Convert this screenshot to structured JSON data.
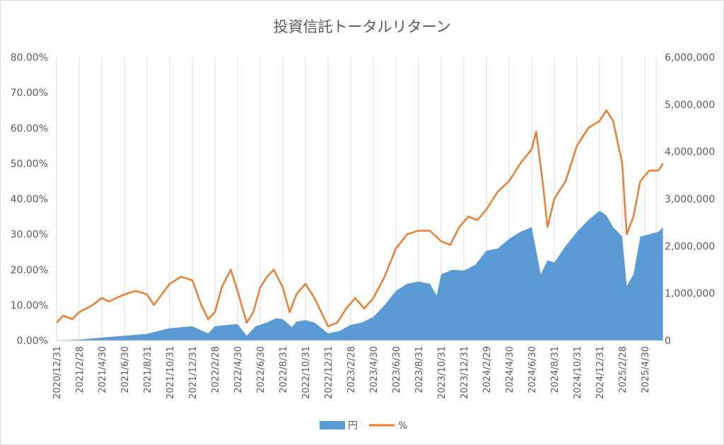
{
  "chart_data": {
    "type": "area+line",
    "title": "投資信託トータルリターン",
    "x_categories": [
      "2020/12/31",
      "2021/2/28",
      "2021/4/30",
      "2021/6/30",
      "2021/8/31",
      "2021/10/31",
      "2021/12/31",
      "2022/2/28",
      "2022/4/30",
      "2022/6/30",
      "2022/8/31",
      "2022/10/31",
      "2022/12/31",
      "2023/2/28",
      "2023/4/30",
      "2023/6/30",
      "2023/8/31",
      "2023/10/31",
      "2023/12/31",
      "2024/2/29",
      "2024/4/30",
      "2024/6/30",
      "2024/8/31",
      "2024/10/31",
      "2024/12/31",
      "2025/2/28",
      "2025/4/30"
    ],
    "y_left": {
      "ticks": [
        "0.00%",
        "10.00%",
        "20.00%",
        "30.00%",
        "40.00%",
        "50.00%",
        "60.00%",
        "70.00%",
        "80.00%"
      ],
      "min": 0,
      "max": 80
    },
    "y_right": {
      "ticks": [
        "0",
        "1,000,000",
        "2,000,000",
        "3,000,000",
        "4,000,000",
        "5,000,000",
        "6,000,000"
      ],
      "min": 0,
      "max": 6000000
    },
    "series": [
      {
        "name": "円",
        "kind": "area",
        "axis": "right",
        "color": "#5b9bd5",
        "points": [
          [
            0,
            0
          ],
          [
            1,
            20000
          ],
          [
            2,
            60000
          ],
          [
            3,
            100000
          ],
          [
            4,
            140000
          ],
          [
            5,
            260000
          ],
          [
            6,
            300000
          ],
          [
            6.7,
            150000
          ],
          [
            7,
            300000
          ],
          [
            8,
            350000
          ],
          [
            8.4,
            100000
          ],
          [
            8.8,
            300000
          ],
          [
            9.3,
            380000
          ],
          [
            9.7,
            470000
          ],
          [
            10,
            450000
          ],
          [
            10.4,
            280000
          ],
          [
            10.6,
            400000
          ],
          [
            11,
            430000
          ],
          [
            11.4,
            380000
          ],
          [
            12,
            150000
          ],
          [
            12.5,
            200000
          ],
          [
            13,
            330000
          ],
          [
            13.5,
            380000
          ],
          [
            14,
            500000
          ],
          [
            14.5,
            750000
          ],
          [
            15,
            1050000
          ],
          [
            15.5,
            1200000
          ],
          [
            16,
            1250000
          ],
          [
            16.5,
            1200000
          ],
          [
            16.8,
            950000
          ],
          [
            17,
            1400000
          ],
          [
            17.5,
            1500000
          ],
          [
            18,
            1480000
          ],
          [
            18.5,
            1600000
          ],
          [
            19,
            1900000
          ],
          [
            19.5,
            1950000
          ],
          [
            20,
            2150000
          ],
          [
            20.5,
            2300000
          ],
          [
            21,
            2400000
          ],
          [
            21.4,
            1400000
          ],
          [
            21.7,
            1700000
          ],
          [
            22,
            1650000
          ],
          [
            22.5,
            2000000
          ],
          [
            23,
            2300000
          ],
          [
            23.5,
            2550000
          ],
          [
            24,
            2750000
          ],
          [
            24.3,
            2650000
          ],
          [
            24.6,
            2400000
          ],
          [
            25,
            2200000
          ],
          [
            25.2,
            1150000
          ],
          [
            25.5,
            1400000
          ],
          [
            25.8,
            2200000
          ],
          [
            26.2,
            2250000
          ],
          [
            26.6,
            2300000
          ],
          [
            26.8,
            2400000
          ]
        ]
      },
      {
        "name": "%",
        "kind": "line",
        "axis": "left",
        "color": "#ed7d31",
        "points": [
          [
            0,
            5
          ],
          [
            0.3,
            7
          ],
          [
            0.7,
            6
          ],
          [
            1,
            8
          ],
          [
            1.3,
            9
          ],
          [
            1.6,
            10
          ],
          [
            2,
            12
          ],
          [
            2.3,
            11
          ],
          [
            3,
            13
          ],
          [
            3.5,
            14
          ],
          [
            4,
            13
          ],
          [
            4.3,
            10
          ],
          [
            5,
            16
          ],
          [
            5.5,
            18
          ],
          [
            6,
            17
          ],
          [
            6.4,
            10
          ],
          [
            6.7,
            6
          ],
          [
            7,
            8
          ],
          [
            7.3,
            15
          ],
          [
            7.7,
            20
          ],
          [
            8,
            14
          ],
          [
            8.4,
            5
          ],
          [
            8.7,
            8
          ],
          [
            9,
            15
          ],
          [
            9.3,
            18
          ],
          [
            9.6,
            20
          ],
          [
            10,
            15
          ],
          [
            10.3,
            8
          ],
          [
            10.6,
            13
          ],
          [
            11,
            16
          ],
          [
            11.4,
            12
          ],
          [
            12,
            4
          ],
          [
            12.4,
            5
          ],
          [
            12.8,
            9
          ],
          [
            13.2,
            12
          ],
          [
            13.6,
            9
          ],
          [
            14,
            12
          ],
          [
            14.5,
            18
          ],
          [
            15,
            26
          ],
          [
            15.5,
            30
          ],
          [
            16,
            31
          ],
          [
            16.5,
            31
          ],
          [
            17,
            28
          ],
          [
            17.4,
            27
          ],
          [
            17.8,
            32
          ],
          [
            18.2,
            35
          ],
          [
            18.6,
            34
          ],
          [
            19,
            37
          ],
          [
            19.5,
            42
          ],
          [
            20,
            45
          ],
          [
            20.5,
            50
          ],
          [
            21,
            54
          ],
          [
            21.2,
            59
          ],
          [
            21.5,
            44
          ],
          [
            21.7,
            32
          ],
          [
            22,
            40
          ],
          [
            22.5,
            45
          ],
          [
            23,
            55
          ],
          [
            23.5,
            60
          ],
          [
            24,
            62
          ],
          [
            24.3,
            65
          ],
          [
            24.6,
            62
          ],
          [
            25,
            50
          ],
          [
            25.2,
            30
          ],
          [
            25.5,
            35
          ],
          [
            25.8,
            45
          ],
          [
            26.2,
            48
          ],
          [
            26.6,
            48
          ],
          [
            26.8,
            50
          ]
        ]
      }
    ],
    "legend": {
      "position": "bottom",
      "entries": [
        "円",
        "%"
      ]
    },
    "gridlines": {
      "vertical": true,
      "horizontal": false
    }
  }
}
